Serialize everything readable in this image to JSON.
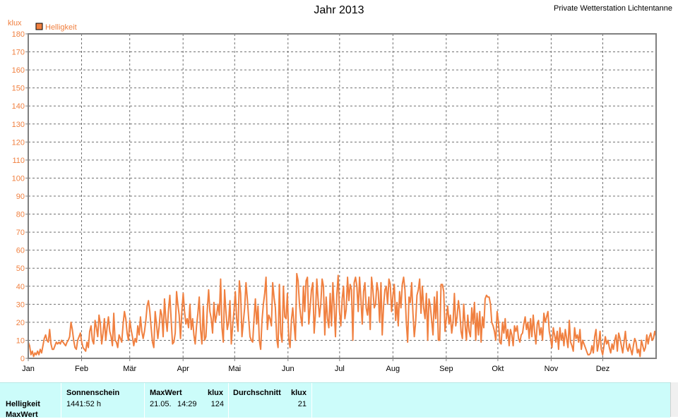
{
  "header": {
    "title": "Jahr 2013",
    "station": "Private Wetterstation Lichtentanne"
  },
  "chart_data": {
    "type": "line",
    "ylabel": "klux",
    "ylim": [
      0,
      180
    ],
    "yticks": [
      0,
      10,
      20,
      30,
      40,
      50,
      60,
      70,
      80,
      90,
      100,
      110,
      120,
      130,
      140,
      150,
      160,
      170,
      180
    ],
    "xlim": [
      0,
      365
    ],
    "month_labels": [
      "Jan",
      "Feb",
      "Mär",
      "Apr",
      "Mai",
      "Jun",
      "Jul",
      "Aug",
      "Sep",
      "Okt",
      "Nov",
      "Dez"
    ],
    "month_starts": [
      0,
      31,
      59,
      90,
      120,
      151,
      181,
      212,
      243,
      273,
      304,
      334
    ],
    "grid": true,
    "legend_position": "top-left",
    "series": [
      {
        "name": "Helligkeit",
        "color": "#f08040",
        "values": [
          9,
          7,
          2,
          4,
          1,
          3,
          2,
          4,
          2,
          5,
          3,
          7,
          11,
          13,
          10,
          9,
          16,
          8,
          5,
          5,
          7,
          9,
          8,
          9,
          8,
          10,
          9,
          8,
          7,
          9,
          10,
          12,
          20,
          16,
          10,
          6,
          5,
          10,
          12,
          14,
          9,
          6,
          5,
          4,
          9,
          6,
          15,
          18,
          10,
          8,
          21,
          17,
          12,
          24,
          19,
          8,
          14,
          22,
          10,
          17,
          23,
          15,
          12,
          7,
          25,
          10,
          9,
          6,
          13,
          11,
          9,
          19,
          26,
          22,
          14,
          10,
          21,
          16,
          12,
          7,
          11,
          9,
          18,
          13,
          23,
          15,
          11,
          15,
          21,
          29,
          32,
          26,
          17,
          9,
          6,
          26,
          19,
          11,
          18,
          27,
          24,
          12,
          33,
          22,
          15,
          27,
          35,
          21,
          8,
          9,
          14,
          37,
          30,
          24,
          11,
          26,
          36,
          26,
          19,
          22,
          17,
          30,
          16,
          22,
          13,
          8,
          18,
          25,
          34,
          16,
          8,
          29,
          10,
          12,
          27,
          38,
          26,
          22,
          14,
          31,
          20,
          24,
          30,
          24,
          44,
          17,
          9,
          38,
          26,
          16,
          20,
          32,
          8,
          18,
          26,
          37,
          22,
          15,
          43,
          36,
          12,
          20,
          28,
          42,
          33,
          22,
          12,
          10,
          9,
          22,
          33,
          19,
          29,
          10,
          5,
          21,
          30,
          36,
          45,
          16,
          24,
          22,
          18,
          42,
          34,
          28,
          11,
          6,
          41,
          14,
          9,
          40,
          23,
          22,
          36,
          11,
          6,
          21,
          28,
          19,
          10,
          47,
          43,
          30,
          23,
          18,
          40,
          26,
          43,
          45,
          19,
          28,
          38,
          42,
          14,
          25,
          44,
          32,
          23,
          30,
          44,
          40,
          13,
          34,
          22,
          17,
          36,
          18,
          42,
          28,
          12,
          35,
          46,
          26,
          18,
          33,
          40,
          22,
          27,
          45,
          32,
          41,
          38,
          10,
          42,
          45,
          40,
          26,
          45,
          33,
          19,
          37,
          42,
          28,
          24,
          34,
          16,
          45,
          38,
          28,
          30,
          42,
          37,
          20,
          42,
          13,
          29,
          38,
          40,
          30,
          44,
          41,
          26,
          35,
          41,
          21,
          31,
          18,
          37,
          28,
          41,
          45,
          38,
          20,
          9,
          34,
          31,
          42,
          25,
          12,
          20,
          35,
          38,
          44,
          25,
          40,
          28,
          22,
          36,
          10,
          33,
          29,
          21,
          13,
          34,
          22,
          37,
          10,
          10,
          41,
          41,
          37,
          15,
          22,
          29,
          19,
          24,
          14,
          20,
          36,
          18,
          23,
          32,
          26,
          15,
          11,
          30,
          19,
          10,
          24,
          15,
          12,
          28,
          19,
          31,
          10,
          25,
          13,
          26,
          9,
          23,
          17,
          33,
          35,
          34,
          34,
          30,
          20,
          18,
          15,
          10,
          26,
          20,
          9,
          8,
          20,
          14,
          22,
          11,
          16,
          7,
          16,
          13,
          7,
          18,
          15,
          18,
          11,
          9,
          13,
          14,
          19,
          23,
          16,
          20,
          11,
          22,
          12,
          24,
          15,
          8,
          19,
          21,
          13,
          17,
          10,
          25,
          20,
          23,
          26,
          15,
          11,
          6,
          17,
          13,
          9,
          15,
          5,
          17,
          10,
          14,
          7,
          16,
          11,
          6,
          21,
          9,
          7,
          4,
          17,
          11,
          13,
          9,
          16,
          5,
          10,
          8,
          6,
          4,
          2,
          2,
          3,
          7,
          3,
          12,
          16,
          4,
          8,
          15,
          5,
          2,
          7,
          12,
          8,
          10,
          6,
          3,
          8,
          5,
          10,
          13,
          4,
          14,
          11,
          7,
          3,
          9,
          15,
          6,
          4,
          8,
          5,
          2,
          7,
          11,
          9,
          3,
          5,
          1,
          10,
          7,
          4,
          6,
          13,
          8,
          12,
          14,
          10,
          11,
          15,
          12
        ]
      }
    ]
  },
  "stats": {
    "row_labels": [
      "Helligkeit",
      "MaxWert"
    ],
    "sun_header": "Sonnenschein",
    "sun_value": "1441:52 h",
    "max_header": "MaxWert",
    "max_unit": "klux",
    "max_date": "21.05.",
    "max_time": "14:29",
    "max_value": "124",
    "avg_header": "Durchschnitt",
    "avg_unit": "klux",
    "avg_value": "21"
  }
}
